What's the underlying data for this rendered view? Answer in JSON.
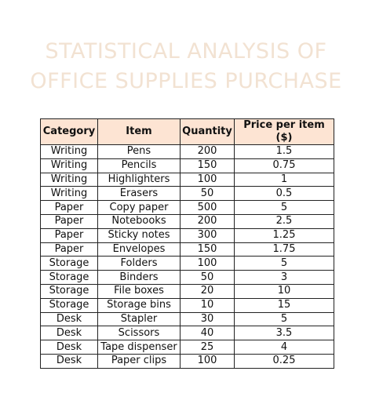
{
  "header": {
    "title_lines": [
      "STATISTICAL ANALYSIS OF",
      "OFFICE SUPPLIES PURCHASE"
    ]
  },
  "table": {
    "columns": [
      "Category",
      "Item",
      "Quantity",
      "Price per item ($)"
    ],
    "rows": [
      [
        "Writing",
        "Pens",
        "200",
        "1.5"
      ],
      [
        "Writing",
        "Pencils",
        "150",
        "0.75"
      ],
      [
        "Writing",
        "Highlighters",
        "100",
        "1"
      ],
      [
        "Writing",
        "Erasers",
        "50",
        "0.5"
      ],
      [
        "Paper",
        "Copy paper",
        "500",
        "5"
      ],
      [
        "Paper",
        "Notebooks",
        "200",
        "2.5"
      ],
      [
        "Paper",
        "Sticky notes",
        "300",
        "1.25"
      ],
      [
        "Paper",
        "Envelopes",
        "150",
        "1.75"
      ],
      [
        "Storage",
        "Folders",
        "100",
        "5"
      ],
      [
        "Storage",
        "Binders",
        "50",
        "3"
      ],
      [
        "Storage",
        "File boxes",
        "20",
        "10"
      ],
      [
        "Storage",
        "Storage bins",
        "10",
        "15"
      ],
      [
        "Desk",
        "Stapler",
        "30",
        "5"
      ],
      [
        "Desk",
        "Scissors",
        "40",
        "3.5"
      ],
      [
        "Desk",
        "Tape dispenser",
        "25",
        "4"
      ],
      [
        "Desk",
        "Paper clips",
        "100",
        "0.25"
      ]
    ]
  }
}
